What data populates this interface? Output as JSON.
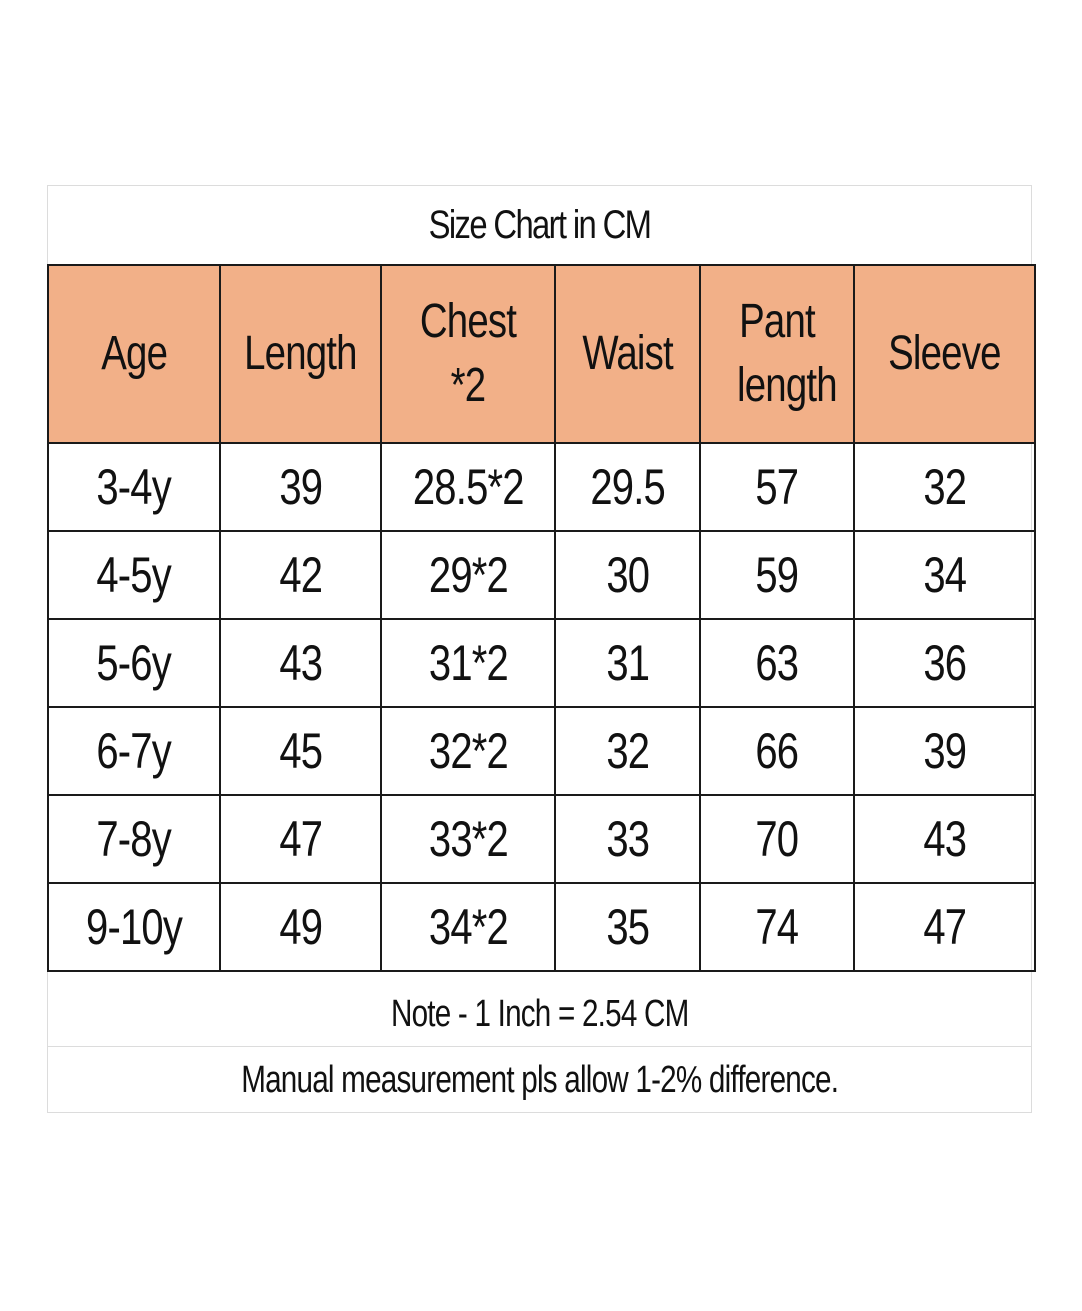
{
  "title": "Size Chart in CM",
  "header_color": "#f2b088",
  "columns": [
    "Age",
    "Length",
    "Chest *2",
    "Waist",
    "Pant length",
    "Sleeve"
  ],
  "rows": [
    [
      "3-4y",
      "39",
      "28.5*2",
      "29.5",
      "57",
      "32"
    ],
    [
      "4-5y",
      "42",
      "29*2",
      "30",
      "59",
      "34"
    ],
    [
      "5-6y",
      "43",
      "31*2",
      "31",
      "63",
      "36"
    ],
    [
      "6-7y",
      "45",
      "32*2",
      "32",
      "66",
      "39"
    ],
    [
      "7-8y",
      "47",
      "33*2",
      "33",
      "70",
      "43"
    ],
    [
      "9-10y",
      "49",
      "34*2",
      "35",
      "74",
      "47"
    ]
  ],
  "notes": [
    "Note - 1 Inch = 2.54 CM",
    "Manual measurement pls allow 1-2% difference."
  ]
}
